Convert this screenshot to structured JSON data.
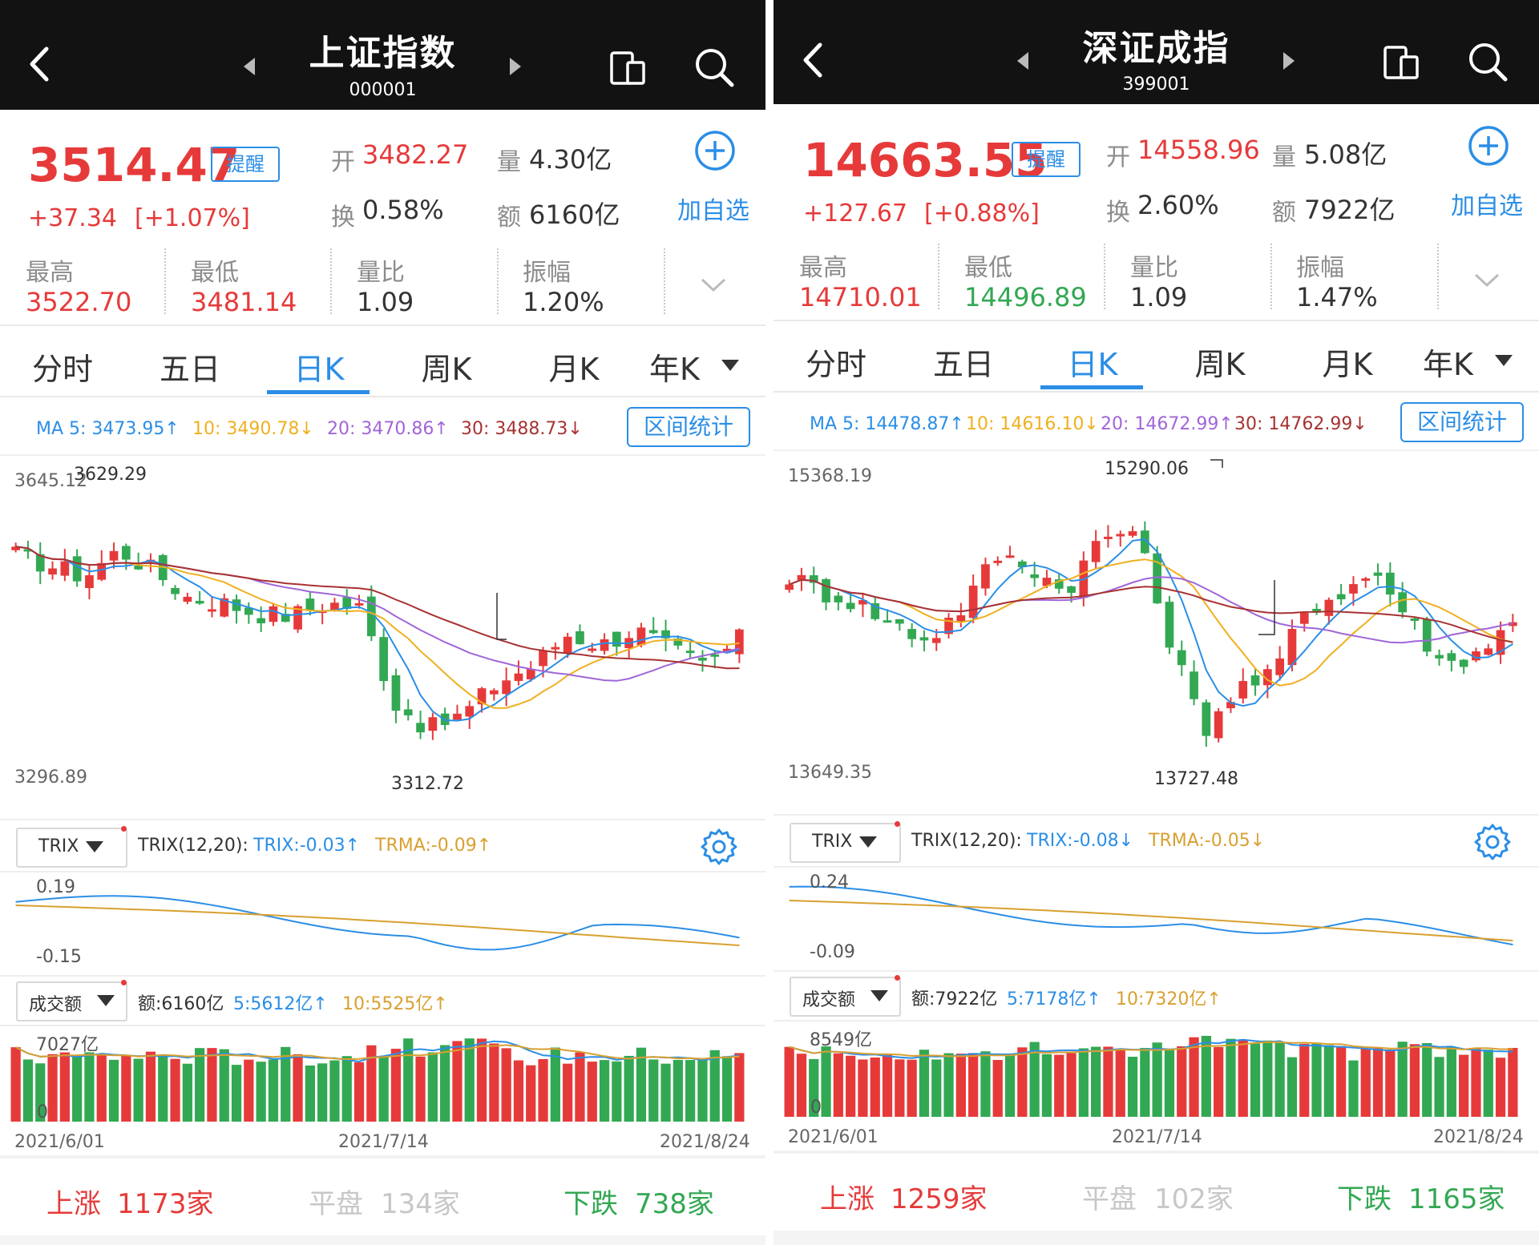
{
  "panels": [
    {
      "index": {
        "name": "上证指数",
        "code": "000001"
      },
      "price": "3514.47",
      "remind_label": "提醒",
      "change": "+37.34",
      "change_pct": "[+1.07%]",
      "open_label": "开",
      "open": "3482.27",
      "vol_label": "量",
      "volume": "4.30亿",
      "turnover_label": "换",
      "turnover": "0.58%",
      "amount_label": "额",
      "amount": "6160亿",
      "add_label": "加自选",
      "stats": [
        {
          "label": "最高",
          "value": "3522.70",
          "tone": "red"
        },
        {
          "label": "最低",
          "value": "3481.14",
          "tone": "red"
        },
        {
          "label": "量比",
          "value": "1.09",
          "tone": "dark"
        },
        {
          "label": "振幅",
          "value": "1.20%",
          "tone": "dark"
        }
      ],
      "tabs": [
        "分时",
        "五日",
        "日K",
        "周K",
        "月K",
        "年K"
      ],
      "active_tab": 2,
      "ma": {
        "ma5": "MA 5: 3473.95↑",
        "ma10": "10: 3490.78↓",
        "ma20": "20: 3470.86↑",
        "ma30": "30: 3488.73↓"
      },
      "range_btn": "区间统计",
      "kline": {
        "top_label": "3645.12",
        "high_note": "3629.29",
        "low_note": "3312.72",
        "bottom_label": "3296.89"
      },
      "trix": {
        "selector": "TRIX",
        "params": "TRIX(12,20):",
        "trix": "TRIX:-0.03↑",
        "trma": "TRMA:-0.09↑",
        "top": "0.19",
        "bottom": "-0.15"
      },
      "volume_ind": {
        "selector": "成交额",
        "amount": "额:6160亿",
        "ma5": "5:5612亿↑",
        "ma10": "10:5525亿↑",
        "top": "7027亿",
        "zero": "0"
      },
      "dates": [
        "2021/6/01",
        "2021/7/14",
        "2021/8/24"
      ],
      "breadth": {
        "up_label": "上涨",
        "up": "1173家",
        "flat_label": "平盘",
        "flat": "134家",
        "down_label": "下跌",
        "down": "738家"
      }
    },
    {
      "index": {
        "name": "深证成指",
        "code": "399001"
      },
      "price": "14663.55",
      "remind_label": "提醒",
      "change": "+127.67",
      "change_pct": "[+0.88%]",
      "open_label": "开",
      "open": "14558.96",
      "vol_label": "量",
      "volume": "5.08亿",
      "turnover_label": "换",
      "turnover": "2.60%",
      "amount_label": "额",
      "amount": "7922亿",
      "add_label": "加自选",
      "stats": [
        {
          "label": "最高",
          "value": "14710.01",
          "tone": "red"
        },
        {
          "label": "最低",
          "value": "14496.89",
          "tone": "green"
        },
        {
          "label": "量比",
          "value": "1.09",
          "tone": "dark"
        },
        {
          "label": "振幅",
          "value": "1.47%",
          "tone": "dark"
        }
      ],
      "tabs": [
        "分时",
        "五日",
        "日K",
        "周K",
        "月K",
        "年K"
      ],
      "active_tab": 2,
      "ma": {
        "ma5": "MA 5: 14478.87↑",
        "ma10": "10: 14616.10↓",
        "ma20": "20: 14672.99↑",
        "ma30": "30: 14762.99↓"
      },
      "range_btn": "区间统计",
      "kline": {
        "top_label": "15368.19",
        "high_note": "15290.06",
        "low_note": "13727.48",
        "bottom_label": "13649.35"
      },
      "trix": {
        "selector": "TRIX",
        "params": "TRIX(12,20):",
        "trix": "TRIX:-0.08↓",
        "trma": "TRMA:-0.05↓",
        "top": "0.24",
        "bottom": "-0.09"
      },
      "volume_ind": {
        "selector": "成交额",
        "amount": "额:7922亿",
        "ma5": "5:7178亿↑",
        "ma10": "10:7320亿↑",
        "top": "8549亿",
        "zero": "0"
      },
      "dates": [
        "2021/6/01",
        "2021/7/14",
        "2021/8/24"
      ],
      "breadth": {
        "up_label": "上涨",
        "up": "1259家",
        "flat_label": "平盘",
        "flat": "102家",
        "down_label": "下跌",
        "down": "1165家"
      }
    }
  ],
  "colors": {
    "up": "#e63a3a",
    "down": "#33a853",
    "accent": "#2b8ee6",
    "ma5": "#2b8ee6",
    "ma10": "#f0b020",
    "ma20": "#a066d8",
    "ma30": "#a83232",
    "header": "#121212"
  },
  "icons": [
    "back-arrow-icon",
    "prev-triangle-icon",
    "next-triangle-icon",
    "switch-device-icon",
    "search-icon",
    "add-circle-icon",
    "chevron-down-icon",
    "dropdown-triangle-icon",
    "gear-icon"
  ]
}
